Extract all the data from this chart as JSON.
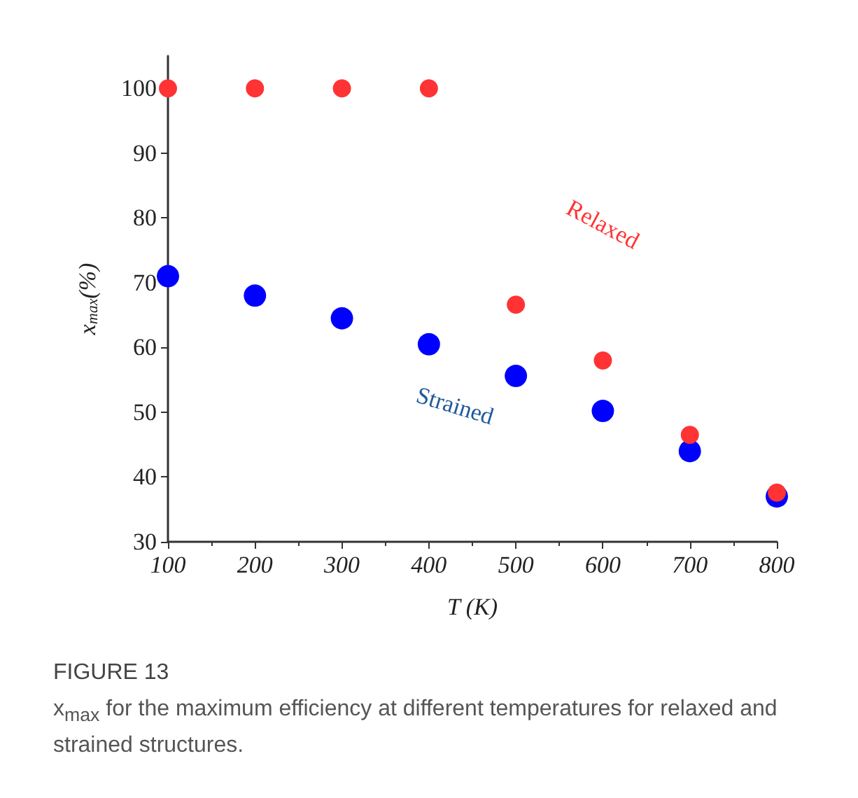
{
  "chart_data": {
    "type": "scatter",
    "xlabel": "T (K)",
    "ylabel": "x$_{max}$(%)",
    "annotations": [
      "FIGURE 13",
      "x$_{max}$ for the maximum efficiency at different temperatures for relaxed and strained structures."
    ],
    "x": [
      100,
      200,
      300,
      400,
      500,
      600,
      700,
      800
    ],
    "series": [
      {
        "name": "Strained",
        "color": "#0000ff",
        "values": [
          71.0,
          68.0,
          64.5,
          60.5,
          55.6,
          50.2,
          44.0,
          37.0
        ]
      },
      {
        "name": "Relaxed",
        "color": "#ff3333",
        "values": [
          100,
          100,
          100,
          100,
          66.6,
          58.0,
          46.5,
          37.6
        ]
      }
    ],
    "xlim": [
      100,
      800
    ],
    "xticks": [
      100,
      200,
      300,
      400,
      500,
      600,
      700,
      800
    ],
    "ylim": [
      30,
      105
    ],
    "yticks": [
      30,
      40,
      50,
      60,
      70,
      80,
      90,
      100
    ],
    "grid": false,
    "legend": false,
    "marker": "circle"
  }
}
